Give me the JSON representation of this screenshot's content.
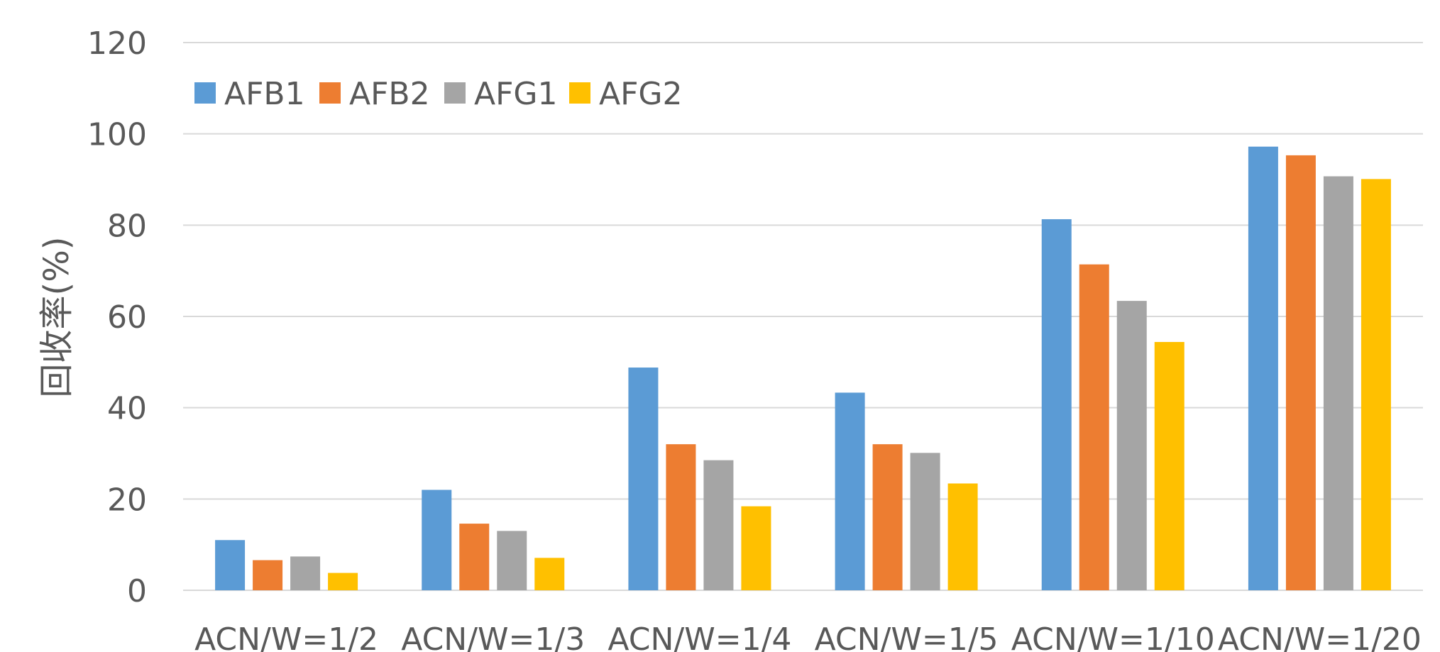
{
  "chart_data": {
    "type": "bar",
    "title": "",
    "xlabel": "",
    "ylabel": "回收率(%)",
    "ylim": [
      0,
      120
    ],
    "yticks": [
      0,
      20,
      40,
      60,
      80,
      100,
      120
    ],
    "grid": true,
    "legend_position": "top-left",
    "categories": [
      "ACN/W=1/2",
      "ACN/W=1/3",
      "ACN/W=1/4",
      "ACN/W=1/5",
      "ACN/W=1/10",
      "ACN/W=1/20"
    ],
    "series": [
      {
        "name": "AFB1",
        "color": "#5B9BD5",
        "values": [
          11,
          22,
          48.8,
          43.3,
          81.3,
          97.2
        ]
      },
      {
        "name": "AFB2",
        "color": "#ED7D31",
        "values": [
          6.6,
          14.6,
          32,
          32,
          71.4,
          95.3
        ]
      },
      {
        "name": "AFG1",
        "color": "#A5A5A5",
        "values": [
          7.4,
          13,
          28.5,
          30.1,
          63.4,
          90.7
        ]
      },
      {
        "name": "AFG2",
        "color": "#FFC000",
        "values": [
          3.8,
          7.1,
          18.4,
          23.4,
          54.4,
          90.1
        ]
      }
    ]
  }
}
